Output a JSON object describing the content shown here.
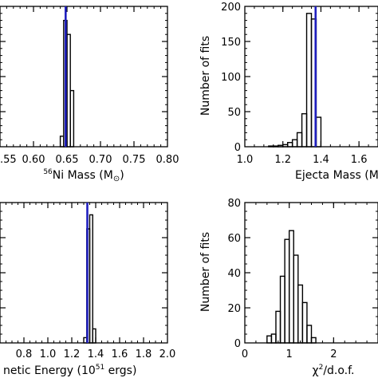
{
  "colors": {
    "hist": "#000000",
    "marker": "#1f1fbf",
    "axes": "#000000"
  },
  "chart_data": [
    {
      "type": "histogram",
      "panel": "top-left",
      "xlabel_parts": [
        "56",
        "Ni Mass (M",
        "⊙",
        ")"
      ],
      "xlim": [
        0.55,
        0.8
      ],
      "ylim": [
        0,
        200
      ],
      "x_tick_values": [
        0.55,
        0.6,
        0.65,
        0.7,
        0.75,
        0.8
      ],
      "x_tick_labels": [
        ".55",
        "0.60",
        "0.65",
        "0.70",
        "0.75",
        "0.80"
      ],
      "minor_x_step": 0.01,
      "y_tick_values": [
        0,
        50,
        100,
        150,
        200
      ],
      "minor_y_step": 10,
      "bin_width": 0.005,
      "bins": [
        {
          "x0": 0.635,
          "count": 0
        },
        {
          "x0": 0.64,
          "count": 15
        },
        {
          "x0": 0.645,
          "count": 180
        },
        {
          "x0": 0.65,
          "count": 160
        },
        {
          "x0": 0.655,
          "count": 80
        },
        {
          "x0": 0.66,
          "count": 0
        }
      ],
      "marker_x": 0.648
    },
    {
      "type": "histogram",
      "panel": "top-right",
      "xlabel": "Ejecta Mass (M",
      "ylabel": "Number of fits",
      "xlim": [
        1.0,
        1.7
      ],
      "ylim": [
        0,
        200
      ],
      "x_tick_values": [
        1.0,
        1.2,
        1.4,
        1.6
      ],
      "x_tick_labels": [
        "1.0",
        "1.2",
        "1.4",
        "1.6"
      ],
      "minor_x_step": 0.05,
      "y_tick_values": [
        0,
        50,
        100,
        150,
        200
      ],
      "y_tick_labels": [
        "0",
        "50",
        "100",
        "150",
        "200"
      ],
      "minor_y_step": 10,
      "bin_width": 0.025,
      "bins": [
        {
          "x0": 1.1,
          "count": 0
        },
        {
          "x0": 1.125,
          "count": 1
        },
        {
          "x0": 1.15,
          "count": 1
        },
        {
          "x0": 1.175,
          "count": 2
        },
        {
          "x0": 1.2,
          "count": 3
        },
        {
          "x0": 1.225,
          "count": 6
        },
        {
          "x0": 1.25,
          "count": 10
        },
        {
          "x0": 1.275,
          "count": 20
        },
        {
          "x0": 1.3,
          "count": 47
        },
        {
          "x0": 1.325,
          "count": 190
        },
        {
          "x0": 1.35,
          "count": 182
        },
        {
          "x0": 1.375,
          "count": 42
        },
        {
          "x0": 1.4,
          "count": 0
        }
      ],
      "marker_x": 1.372
    },
    {
      "type": "histogram",
      "panel": "bottom-left",
      "xlabel_parts": [
        "netic Energy (10",
        "51",
        " ergs)"
      ],
      "xlim": [
        0.6,
        2.0
      ],
      "ylim": [
        0,
        80
      ],
      "x_tick_values": [
        0.8,
        1.0,
        1.2,
        1.4,
        1.6,
        1.8,
        2.0
      ],
      "x_tick_labels": [
        "0.8",
        "1.0",
        "1.2",
        "1.4",
        "1.6",
        "1.8",
        "2.0"
      ],
      "minor_x_step": 0.05,
      "y_tick_values": [
        0,
        20,
        40,
        60,
        80
      ],
      "minor_y_step": 5,
      "bin_width": 0.025,
      "bins": [
        {
          "x0": 1.275,
          "count": 0
        },
        {
          "x0": 1.3,
          "count": 3
        },
        {
          "x0": 1.325,
          "count": 65
        },
        {
          "x0": 1.35,
          "count": 73
        },
        {
          "x0": 1.375,
          "count": 8
        },
        {
          "x0": 1.4,
          "count": 0
        }
      ],
      "marker_x": 1.33
    },
    {
      "type": "histogram",
      "panel": "bottom-right",
      "xlabel_parts": [
        "χ",
        "2",
        "/d.o.f."
      ],
      "ylabel": "Number of fits",
      "xlim": [
        0,
        3
      ],
      "ylim": [
        0,
        80
      ],
      "x_tick_values": [
        0,
        1,
        2
      ],
      "x_tick_labels": [
        "0",
        "1",
        "2"
      ],
      "minor_x_step": 0.25,
      "y_tick_values": [
        0,
        20,
        40,
        60,
        80
      ],
      "y_tick_labels": [
        "0",
        "20",
        "40",
        "60",
        "80"
      ],
      "minor_y_step": 5,
      "bin_width": 0.1,
      "bins": [
        {
          "x0": 0.4,
          "count": 0
        },
        {
          "x0": 0.5,
          "count": 4
        },
        {
          "x0": 0.6,
          "count": 5
        },
        {
          "x0": 0.7,
          "count": 18
        },
        {
          "x0": 0.8,
          "count": 38
        },
        {
          "x0": 0.9,
          "count": 59
        },
        {
          "x0": 1.0,
          "count": 64
        },
        {
          "x0": 1.1,
          "count": 50
        },
        {
          "x0": 1.2,
          "count": 33
        },
        {
          "x0": 1.3,
          "count": 23
        },
        {
          "x0": 1.4,
          "count": 10
        },
        {
          "x0": 1.5,
          "count": 3
        },
        {
          "x0": 1.6,
          "count": 0
        }
      ]
    }
  ]
}
